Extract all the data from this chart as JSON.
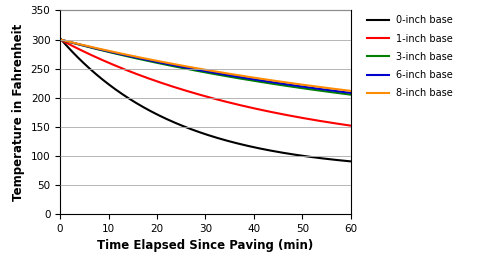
{
  "xlabel": "Time Elapsed Since Paving (min)",
  "ylabel": "Temperature in Fahrenheit",
  "xlim": [
    0,
    60
  ],
  "ylim": [
    0,
    350
  ],
  "xticks": [
    0,
    10,
    20,
    30,
    40,
    50,
    60
  ],
  "yticks": [
    0,
    50,
    100,
    150,
    200,
    250,
    300,
    350
  ],
  "curves": [
    {
      "label": "0-inch base",
      "color": "#000000",
      "T0": 302,
      "T_inf": 72,
      "k": 0.042
    },
    {
      "label": "1-inch base",
      "color": "#ff0000",
      "T0": 300,
      "T_inf": 98,
      "k": 0.022
    },
    {
      "label": "3-inch base",
      "color": "#008000",
      "T0": 300,
      "T_inf": 125,
      "k": 0.013
    },
    {
      "label": "6-inch base",
      "color": "#0000cd",
      "T0": 300,
      "T_inf": 126,
      "k": 0.0125
    },
    {
      "label": "8-inch base",
      "color": "#ff8c00",
      "T0": 300,
      "T_inf": 128,
      "k": 0.012
    }
  ],
  "background_color": "#ffffff",
  "linewidth": 1.5,
  "legend_fontsize": 7.0,
  "axis_label_fontsize": 8.5,
  "tick_fontsize": 7.5,
  "grid_color": "#aaaaaa",
  "figsize": [
    5.01,
    2.61
  ],
  "dpi": 100
}
